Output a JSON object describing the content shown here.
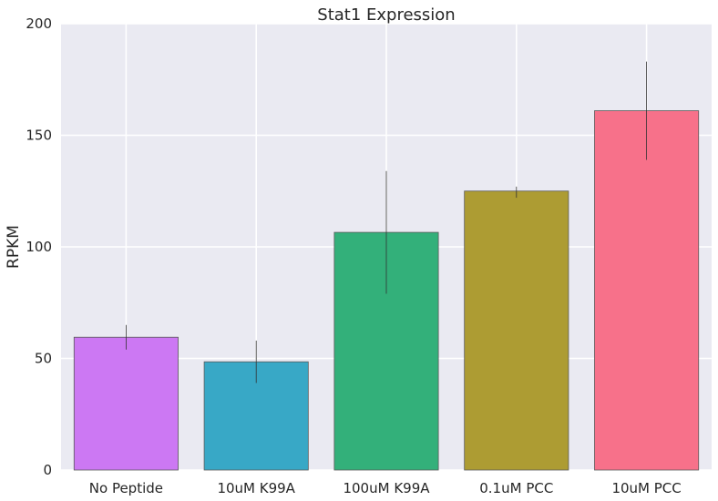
{
  "chart_data": {
    "type": "bar",
    "title": "Stat1 Expression",
    "xlabel": "",
    "ylabel": "RPKM",
    "ylim": [
      0,
      200
    ],
    "yticks": [
      0,
      50,
      100,
      150,
      200
    ],
    "categories": [
      "No Peptide",
      "10uM K99A",
      "100uM K99A",
      "0.1uM PCC",
      "10uM PCC"
    ],
    "values": [
      59.5,
      48.5,
      106.5,
      125,
      161
    ],
    "error_low": [
      54,
      39,
      79,
      122,
      139
    ],
    "error_high": [
      65,
      58,
      134,
      127,
      183
    ],
    "bar_colors": [
      "#cc78f3",
      "#38a8c6",
      "#33b07a",
      "#ad9c33",
      "#f7718a"
    ],
    "background_color": "#eaeaf2",
    "grid": true,
    "legend": "none"
  }
}
